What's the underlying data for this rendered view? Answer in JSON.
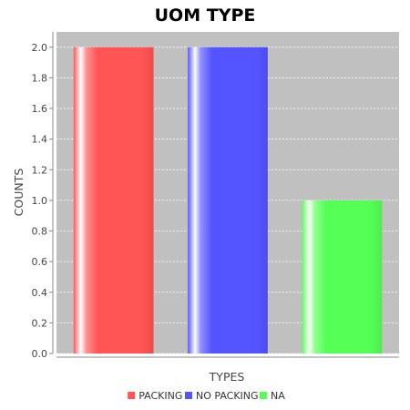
{
  "chart_data": {
    "type": "bar",
    "title": "UOM TYPE",
    "xlabel": "TYPES",
    "ylabel": "COUNTS",
    "categories": [
      "PACKING",
      "NO PACKING",
      "NA"
    ],
    "series": [
      {
        "name": "PACKING",
        "color": "#ff5555",
        "values": [
          2.0,
          null,
          null
        ]
      },
      {
        "name": "NO PACKING",
        "color": "#5555ff",
        "values": [
          null,
          2.0,
          null
        ]
      },
      {
        "name": "NA",
        "color": "#55ff55",
        "values": [
          null,
          null,
          1.0
        ]
      }
    ],
    "ylim": [
      0,
      2.1
    ],
    "yticks": [
      0.0,
      0.2,
      0.4,
      0.6,
      0.8,
      1.0,
      1.2,
      1.4,
      1.6,
      1.8,
      2.0
    ],
    "grid": true,
    "plot_background": "#c0c0c0",
    "legend_position": "bottom"
  }
}
